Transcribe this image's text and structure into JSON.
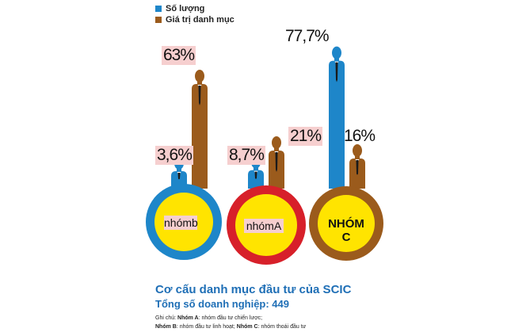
{
  "legend": [
    {
      "label": "Số lượng",
      "color": "#1e86c9"
    },
    {
      "label": "Giá trị danh mục",
      "color": "#9b5b1c"
    }
  ],
  "chart_data": {
    "type": "bar",
    "title": "Cơ cấu danh mục đầu tư của SCIC",
    "subtitle": "Tổng số doanh nghiệp: 449",
    "categories": [
      "nhóm b",
      "nhóm A",
      "NHÓM C"
    ],
    "category_labels": [
      "nhómb",
      "nhómA",
      "NHÓM C"
    ],
    "circle_colors": [
      "#1e86c9",
      "#d7202a",
      "#9b5b1c"
    ],
    "series": [
      {
        "name": "Số lượng",
        "color": "#1e86c9",
        "values": [
          3.6,
          8.7,
          77.7
        ],
        "labels": [
          "3,6%",
          "8,7%",
          "77,7%"
        ]
      },
      {
        "name": "Giá trị danh mục",
        "color": "#9b5b1c",
        "values": [
          63,
          21,
          16
        ],
        "labels": [
          "63%",
          "21%",
          "16%"
        ]
      }
    ],
    "ylim": [
      0,
      100
    ]
  },
  "notes": {
    "line1_prefix": "Ghi chú:",
    "line1_groupA": "Nhóm A",
    "line1_textA": ": nhóm đầu tư chiến lược;",
    "line2_groupB": "Nhóm B",
    "line2_textB": ": nhóm đầu tư linh hoạt;",
    "line2_groupC": "Nhóm C",
    "line2_textC": ": nhóm thoái đầu tư"
  }
}
